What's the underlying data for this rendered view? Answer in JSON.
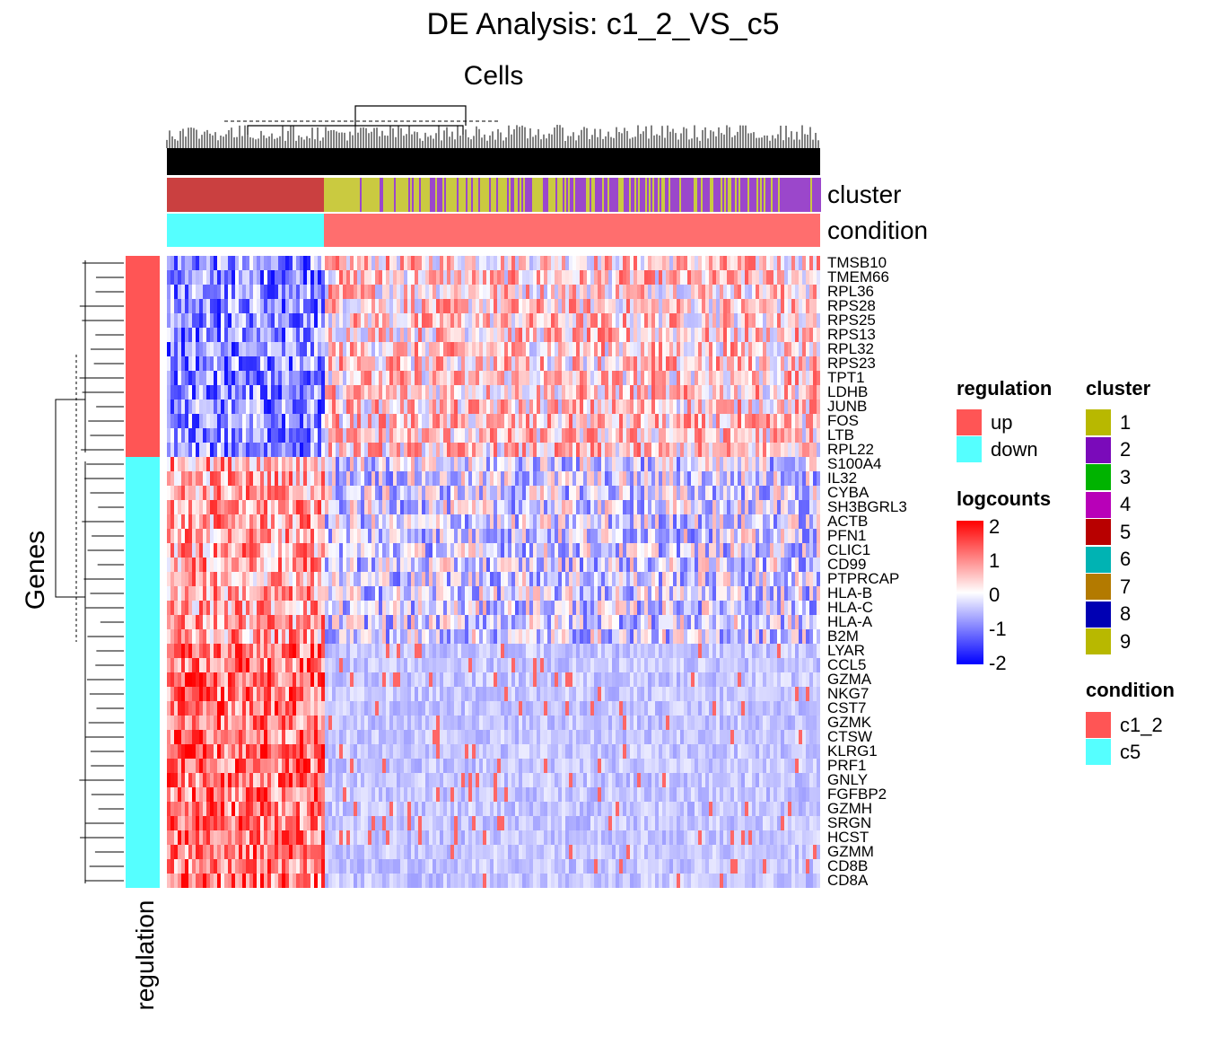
{
  "chart_data": {
    "type": "heatmap",
    "title": "DE Analysis: c1_2_VS_c5",
    "column_title": "Cells",
    "row_title": "Genes",
    "row_annotation_name": "regulation",
    "column_annotations": [
      "cluster",
      "condition"
    ],
    "genes": [
      {
        "name": "TMSB10",
        "regulation": "up"
      },
      {
        "name": "TMEM66",
        "regulation": "up"
      },
      {
        "name": "RPL36",
        "regulation": "up"
      },
      {
        "name": "RPS28",
        "regulation": "up"
      },
      {
        "name": "RPS25",
        "regulation": "up"
      },
      {
        "name": "RPS13",
        "regulation": "up"
      },
      {
        "name": "RPL32",
        "regulation": "up"
      },
      {
        "name": "RPS23",
        "regulation": "up"
      },
      {
        "name": "TPT1",
        "regulation": "up"
      },
      {
        "name": "LDHB",
        "regulation": "up"
      },
      {
        "name": "JUNB",
        "regulation": "up"
      },
      {
        "name": "FOS",
        "regulation": "up"
      },
      {
        "name": "LTB",
        "regulation": "up"
      },
      {
        "name": "RPL22",
        "regulation": "up"
      },
      {
        "name": "S100A4",
        "regulation": "down"
      },
      {
        "name": "IL32",
        "regulation": "down"
      },
      {
        "name": "CYBA",
        "regulation": "down"
      },
      {
        "name": "SH3BGRL3",
        "regulation": "down"
      },
      {
        "name": "ACTB",
        "regulation": "down"
      },
      {
        "name": "PFN1",
        "regulation": "down"
      },
      {
        "name": "CLIC1",
        "regulation": "down"
      },
      {
        "name": "CD99",
        "regulation": "down"
      },
      {
        "name": "PTPRCAP",
        "regulation": "down"
      },
      {
        "name": "HLA-B",
        "regulation": "down"
      },
      {
        "name": "HLA-C",
        "regulation": "down"
      },
      {
        "name": "HLA-A",
        "regulation": "down"
      },
      {
        "name": "B2M",
        "regulation": "down"
      },
      {
        "name": "LYAR",
        "regulation": "down"
      },
      {
        "name": "CCL5",
        "regulation": "down"
      },
      {
        "name": "GZMA",
        "regulation": "down"
      },
      {
        "name": "NKG7",
        "regulation": "down"
      },
      {
        "name": "CST7",
        "regulation": "down"
      },
      {
        "name": "GZMK",
        "regulation": "down"
      },
      {
        "name": "CTSW",
        "regulation": "down"
      },
      {
        "name": "KLRG1",
        "regulation": "down"
      },
      {
        "name": "PRF1",
        "regulation": "down"
      },
      {
        "name": "GNLY",
        "regulation": "down"
      },
      {
        "name": "FGFBP2",
        "regulation": "down"
      },
      {
        "name": "GZMH",
        "regulation": "down"
      },
      {
        "name": "SRGN",
        "regulation": "down"
      },
      {
        "name": "HCST",
        "regulation": "down"
      },
      {
        "name": "GZMM",
        "regulation": "down"
      },
      {
        "name": "CD8B",
        "regulation": "down"
      },
      {
        "name": "CD8A",
        "regulation": "down"
      }
    ],
    "column_groups": [
      {
        "condition": "c5",
        "cluster_mix": "5",
        "fraction_of_cells": 0.24
      },
      {
        "condition": "c1_2",
        "cluster_mix": "1/2",
        "fraction_of_cells": 0.76
      }
    ],
    "color_scale": {
      "name": "logcounts",
      "range": [
        -2,
        2
      ],
      "ticks": [
        "2",
        "1",
        "0",
        "-1",
        "-2"
      ],
      "colors": [
        "#0000ff",
        "#ffffff",
        "#ff0000"
      ]
    },
    "legends": {
      "regulation": {
        "title": "regulation",
        "items": [
          {
            "label": "up",
            "color": "#ff5555"
          },
          {
            "label": "down",
            "color": "#55ffff"
          }
        ]
      },
      "cluster": {
        "title": "cluster",
        "items": [
          {
            "label": "1",
            "color": "#b8b800"
          },
          {
            "label": "2",
            "color": "#7a0aba"
          },
          {
            "label": "3",
            "color": "#00b300"
          },
          {
            "label": "4",
            "color": "#b800b8"
          },
          {
            "label": "5",
            "color": "#b80000"
          },
          {
            "label": "6",
            "color": "#00b3b3"
          },
          {
            "label": "7",
            "color": "#b37a00"
          },
          {
            "label": "8",
            "color": "#0000b3"
          },
          {
            "label": "9",
            "color": "#b8b800"
          }
        ]
      },
      "condition": {
        "title": "condition",
        "items": [
          {
            "label": "c1_2",
            "color": "#ff5555"
          },
          {
            "label": "c5",
            "color": "#55ffff"
          }
        ]
      }
    }
  }
}
